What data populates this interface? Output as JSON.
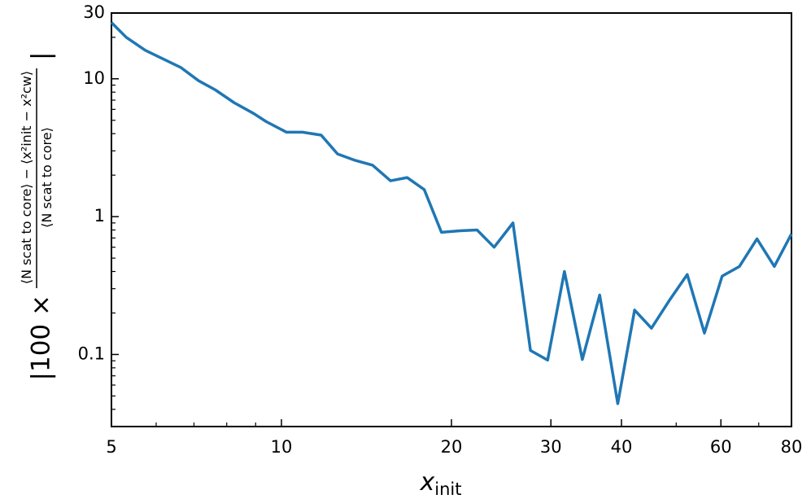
{
  "chart_data": {
    "type": "line",
    "xlabel": {
      "base": "x",
      "sub": "init"
    },
    "ylabel": {
      "prefix": "|100 ×",
      "numerator": "⟨N scat to core⟩ − ⟨x²init − x²cw⟩",
      "denominator": "⟨N scat to core⟩",
      "suffix": "|"
    },
    "xscale": "log",
    "yscale": "log",
    "xlim": [
      5,
      80
    ],
    "ylim": [
      0.03,
      30
    ],
    "xticks": [
      5,
      10,
      20,
      30,
      40,
      60,
      80
    ],
    "xminorticks": [
      6,
      7,
      8,
      9,
      50,
      70
    ],
    "yticks": [
      0.1,
      1,
      10,
      30
    ],
    "yminorticks": [
      0.04,
      0.05,
      0.06,
      0.07,
      0.08,
      0.09,
      0.2,
      0.3,
      0.4,
      0.5,
      0.6,
      0.7,
      0.8,
      0.9,
      2,
      3,
      4,
      5,
      6,
      7,
      8,
      9,
      20
    ],
    "series": [
      {
        "color": "#1f77b4",
        "x": [
          5,
          5.31,
          5.74,
          6.63,
          7.13,
          7.64,
          8.25,
          8.93,
          9.39,
          10.2,
          10.9,
          11.76,
          12.57,
          13.5,
          14.5,
          15.6,
          16.7,
          17.9,
          19.2,
          20.7,
          22.2,
          23.8,
          25.7,
          27.6,
          29.6,
          31.7,
          34.1,
          36.6,
          39.4,
          42.2,
          45.2,
          48.6,
          52.3,
          56.1,
          60.3,
          64.7,
          69.5,
          74.6,
          80
        ],
        "values": [
          25.6,
          20,
          16.1,
          12.1,
          9.7,
          8.3,
          6.7,
          5.6,
          4.9,
          4.1,
          4.1,
          3.9,
          2.85,
          2.56,
          2.36,
          1.82,
          1.92,
          1.57,
          0.77,
          0.79,
          0.8,
          0.6,
          0.9,
          0.107,
          0.091,
          0.4,
          0.092,
          0.27,
          0.044,
          0.21,
          0.155,
          0.246,
          0.38,
          0.143,
          0.37,
          0.435,
          0.69,
          0.435,
          0.75
        ]
      }
    ]
  }
}
